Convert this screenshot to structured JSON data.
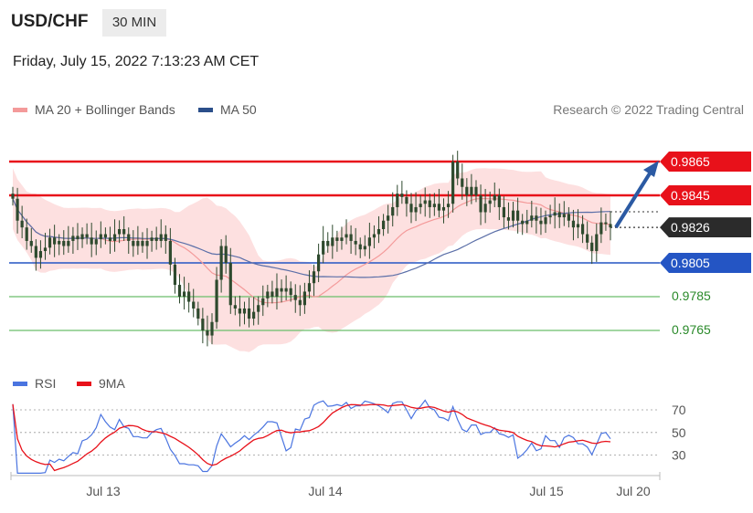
{
  "header": {
    "pair": "USD/CHF",
    "timeframe": "30 MIN"
  },
  "timestamp": "Friday, July 15, 2022 7:13:23 AM CET",
  "legend": {
    "ma20": "MA 20 + Bollinger Bands",
    "ma50": "MA 50",
    "credit": "Research © 2022 Trading Central",
    "rsi": "RSI",
    "rsi_ma": "9MA"
  },
  "colors": {
    "red": "#e8111a",
    "blue": "#2455c4",
    "green": "#6abe6a",
    "candle": "#2e4a2e",
    "band": "#fdd8d8"
  },
  "chart_data": [
    {
      "type": "line",
      "title": "",
      "x_ticks": [
        "Jul 13",
        "Jul 14",
        "Jul 15",
        "Jul 20"
      ],
      "levels": [
        {
          "value": 0.9865,
          "label": "0.9865",
          "color": "#e8111a",
          "style": "resistance"
        },
        {
          "value": 0.9845,
          "label": "0.9845",
          "color": "#e8111a",
          "style": "resistance"
        },
        {
          "value": 0.9826,
          "label": "0.9826",
          "color": "#333333",
          "style": "last-price"
        },
        {
          "value": 0.9805,
          "label": "0.9805",
          "color": "#2455c4",
          "style": "pivot"
        },
        {
          "value": 0.9785,
          "label": "0.9785",
          "color": "#2a8a2a",
          "style": "support"
        },
        {
          "value": 0.9765,
          "label": "0.9765",
          "color": "#2a8a2a",
          "style": "support"
        }
      ],
      "close_series": [
        0.9843,
        0.983,
        0.9826,
        0.9818,
        0.9815,
        0.9808,
        0.9812,
        0.9814,
        0.982,
        0.9816,
        0.9818,
        0.9815,
        0.9818,
        0.9821,
        0.9819,
        0.9822,
        0.982,
        0.9816,
        0.9819,
        0.9822,
        0.982,
        0.9818,
        0.9822,
        0.9825,
        0.9822,
        0.9818,
        0.9815,
        0.9818,
        0.9815,
        0.9818,
        0.982,
        0.9818,
        0.9822,
        0.9818,
        0.9804,
        0.9792,
        0.9785,
        0.9788,
        0.9782,
        0.9778,
        0.9772,
        0.9765,
        0.9762,
        0.977,
        0.9795,
        0.9815,
        0.9805,
        0.978,
        0.9778,
        0.9775,
        0.9778,
        0.9772,
        0.9776,
        0.978,
        0.9784,
        0.9788,
        0.9785,
        0.979,
        0.9788,
        0.979,
        0.9786,
        0.9783,
        0.978,
        0.9788,
        0.9793,
        0.98,
        0.981,
        0.9818,
        0.9815,
        0.982,
        0.9818,
        0.982,
        0.9822,
        0.9818,
        0.9816,
        0.9813,
        0.9815,
        0.982,
        0.9822,
        0.9825,
        0.983,
        0.9833,
        0.9838,
        0.9846,
        0.9844,
        0.984,
        0.9835,
        0.9838,
        0.984,
        0.9842,
        0.9838,
        0.984,
        0.9836,
        0.9838,
        0.984,
        0.9865,
        0.9855,
        0.985,
        0.9845,
        0.985,
        0.9845,
        0.9835,
        0.984,
        0.9842,
        0.9845,
        0.9838,
        0.9832,
        0.983,
        0.9836,
        0.983,
        0.9828,
        0.983,
        0.9833,
        0.983,
        0.9828,
        0.9832,
        0.9833,
        0.9835,
        0.9832,
        0.9834,
        0.983,
        0.9826,
        0.9828,
        0.9822,
        0.9817,
        0.9812,
        0.9822,
        0.9829,
        0.9828,
        0.9826
      ],
      "arrow": {
        "direction": "up",
        "target": 0.9865
      }
    },
    {
      "type": "line",
      "title": "",
      "y_ticks": [
        70,
        50,
        30
      ],
      "series": [
        {
          "name": "RSI",
          "color": "#4a74e0"
        },
        {
          "name": "9MA",
          "color": "#e8111a"
        }
      ]
    }
  ]
}
